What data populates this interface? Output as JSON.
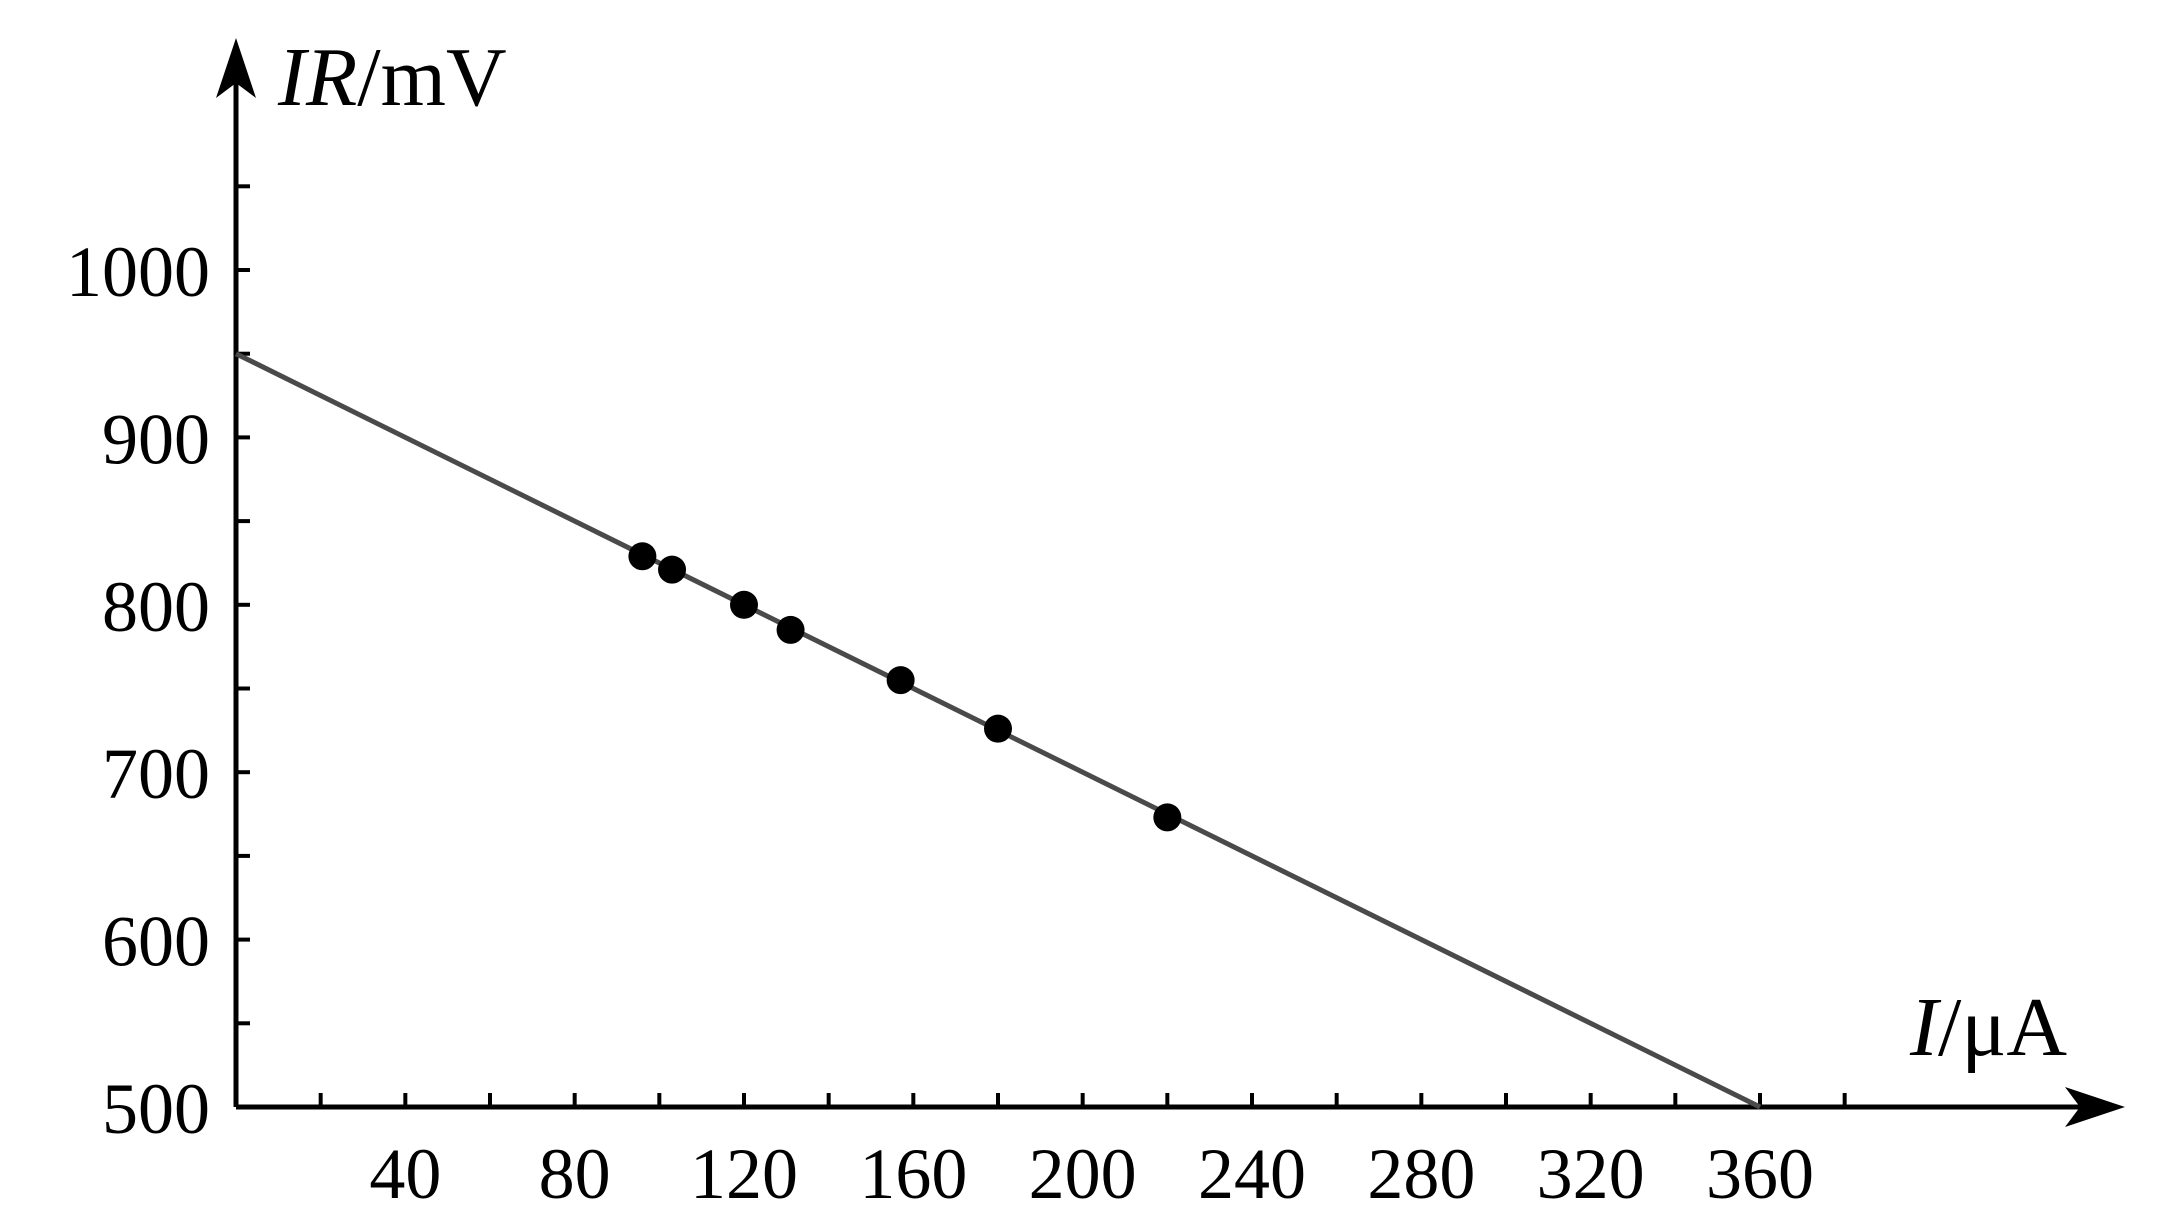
{
  "chart_data": {
    "type": "scatter",
    "title": "",
    "xlabel": {
      "var": "I",
      "unit": "/μA"
    },
    "ylabel": {
      "var": "IR",
      "unit": "/mV"
    },
    "xlim": [
      0,
      400
    ],
    "ylim": [
      500,
      1100
    ],
    "x_ticks": [
      40,
      80,
      120,
      160,
      200,
      240,
      280,
      320,
      360
    ],
    "y_ticks": [
      500,
      600,
      700,
      800,
      900,
      1000
    ],
    "y_minor_ticks": [
      550,
      650,
      750,
      850,
      950,
      1050
    ],
    "x_minor_ticks": [
      20,
      60,
      100,
      140,
      180,
      220,
      260,
      300,
      340,
      380
    ],
    "points": [
      {
        "x": 96,
        "y": 829
      },
      {
        "x": 103,
        "y": 821
      },
      {
        "x": 120,
        "y": 800
      },
      {
        "x": 131,
        "y": 785
      },
      {
        "x": 157,
        "y": 755
      },
      {
        "x": 180,
        "y": 726
      },
      {
        "x": 220,
        "y": 673
      }
    ],
    "fit_line": {
      "from": {
        "x": 0,
        "y": 950
      },
      "to": {
        "x": 360,
        "y": 500
      }
    },
    "grid": false,
    "legend": "none"
  }
}
